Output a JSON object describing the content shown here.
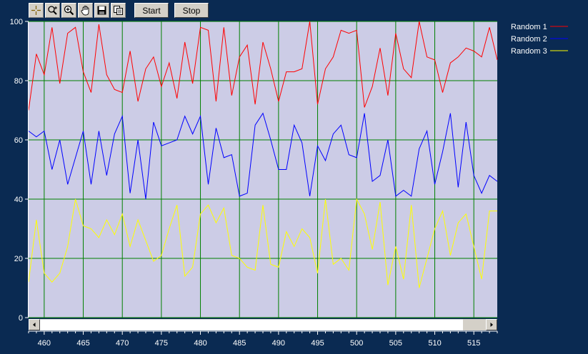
{
  "toolbar": {
    "tools": [
      {
        "name": "crosshair-icon"
      },
      {
        "name": "zoom-axis-icon"
      },
      {
        "name": "zoom-icon"
      },
      {
        "name": "pan-hand-icon"
      },
      {
        "name": "save-icon"
      },
      {
        "name": "copy-icon"
      }
    ],
    "start_label": "Start",
    "stop_label": "Stop"
  },
  "colors": {
    "plot_background": "#cccce6",
    "grid": "#008000",
    "page_background": "#0a2a52"
  },
  "chart_data": {
    "type": "line",
    "xlim": [
      458,
      518
    ],
    "ylim": [
      0,
      100
    ],
    "xticks": [
      460,
      465,
      470,
      475,
      480,
      485,
      490,
      495,
      500,
      505,
      510,
      515
    ],
    "yticks": [
      0,
      20,
      40,
      60,
      80,
      100
    ],
    "grid": true,
    "legend_position": "top-right",
    "series": [
      {
        "name": "Random 1",
        "color": "#ff0000",
        "x": [
          458,
          459,
          460,
          461,
          462,
          463,
          464,
          465,
          466,
          467,
          468,
          469,
          470,
          471,
          472,
          473,
          474,
          475,
          476,
          477,
          478,
          479,
          480,
          481,
          482,
          483,
          484,
          485,
          486,
          487,
          488,
          489,
          490,
          491,
          492,
          493,
          494,
          495,
          496,
          497,
          498,
          499,
          500,
          501,
          502,
          503,
          504,
          505,
          506,
          507,
          508,
          509,
          510,
          511,
          512,
          513,
          514,
          515,
          516,
          517,
          518
        ],
        "values": [
          70,
          89,
          82,
          98,
          79,
          96,
          98,
          83,
          76,
          99,
          82,
          77,
          76,
          90,
          73,
          84,
          88,
          78,
          86,
          74,
          93,
          79,
          98,
          97,
          73,
          98,
          75,
          88,
          92,
          72,
          93,
          84,
          73,
          83,
          83,
          84,
          100,
          72,
          84,
          88,
          97,
          96,
          97,
          71,
          78,
          91,
          75,
          96,
          84,
          81,
          100,
          88,
          87,
          76,
          86,
          88,
          91,
          90,
          88,
          98,
          87
        ]
      },
      {
        "name": "Random 2",
        "color": "#0000ff",
        "x": [
          458,
          459,
          460,
          461,
          462,
          463,
          464,
          465,
          466,
          467,
          468,
          469,
          470,
          471,
          472,
          473,
          474,
          475,
          476,
          477,
          478,
          479,
          480,
          481,
          482,
          483,
          484,
          485,
          486,
          487,
          488,
          489,
          490,
          491,
          492,
          493,
          494,
          495,
          496,
          497,
          498,
          499,
          500,
          501,
          502,
          503,
          504,
          505,
          506,
          507,
          508,
          509,
          510,
          511,
          512,
          513,
          514,
          515,
          516,
          517,
          518
        ],
        "values": [
          63,
          61,
          63,
          50,
          60,
          45,
          54,
          63,
          45,
          63,
          48,
          62,
          68,
          42,
          60,
          40,
          66,
          58,
          59,
          60,
          68,
          62,
          68,
          45,
          64,
          54,
          55,
          41,
          42,
          65,
          69,
          60,
          50,
          50,
          65,
          59,
          41,
          58,
          53,
          62,
          65,
          55,
          54,
          69,
          46,
          48,
          60,
          41,
          43,
          41,
          57,
          63,
          45,
          56,
          69,
          44,
          66,
          48,
          42,
          48,
          46
        ]
      },
      {
        "name": "Random 3",
        "color": "#ffff00",
        "x": [
          458,
          459,
          460,
          461,
          462,
          463,
          464,
          465,
          466,
          467,
          468,
          469,
          470,
          471,
          472,
          473,
          474,
          475,
          476,
          477,
          478,
          479,
          480,
          481,
          482,
          483,
          484,
          485,
          486,
          487,
          488,
          489,
          490,
          491,
          492,
          493,
          494,
          495,
          496,
          497,
          498,
          499,
          500,
          501,
          502,
          503,
          504,
          505,
          506,
          507,
          508,
          509,
          510,
          511,
          512,
          513,
          514,
          515,
          516,
          517,
          518
        ],
        "values": [
          12,
          33,
          15,
          12,
          15,
          24,
          40,
          31,
          30,
          27,
          33,
          28,
          35,
          24,
          33,
          26,
          19,
          21,
          30,
          38,
          14,
          17,
          35,
          38,
          32,
          37,
          21,
          20,
          17,
          16,
          38,
          18,
          17,
          29,
          24,
          30,
          27,
          15,
          40,
          18,
          20,
          16,
          40,
          35,
          23,
          39,
          11,
          24,
          13,
          38,
          10,
          20,
          30,
          36,
          21,
          32,
          35,
          24,
          13,
          36,
          36
        ]
      }
    ]
  }
}
